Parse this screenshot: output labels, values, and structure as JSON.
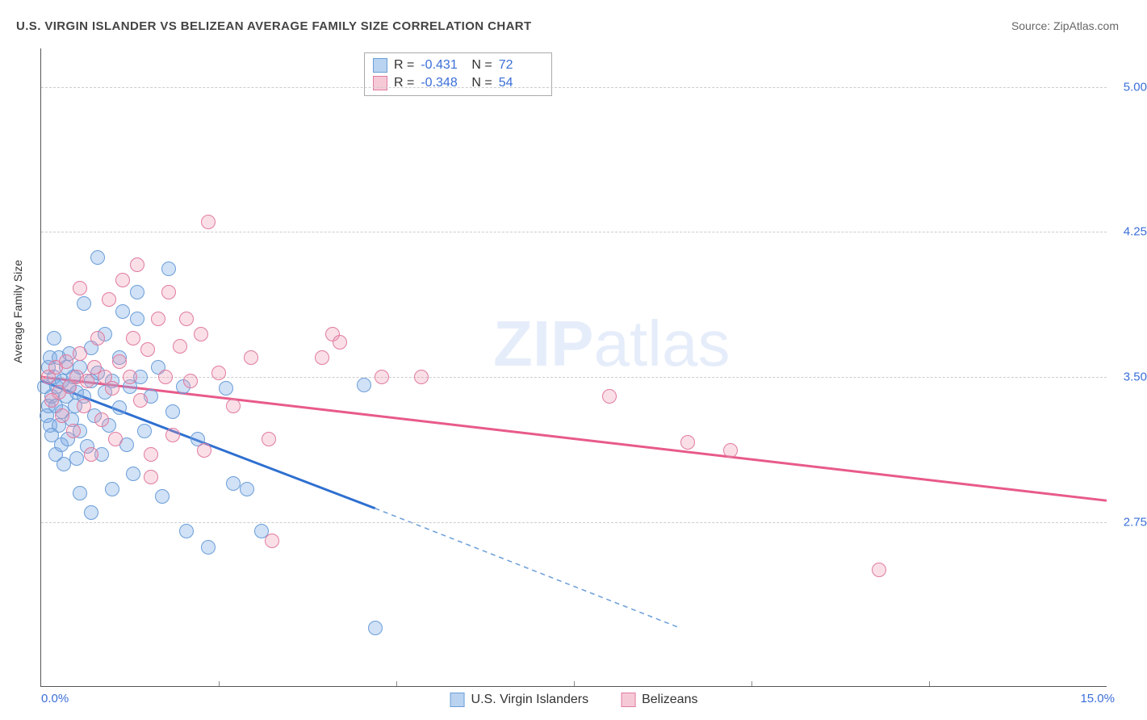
{
  "title": "U.S. VIRGIN ISLANDER VS BELIZEAN AVERAGE FAMILY SIZE CORRELATION CHART",
  "source_prefix": "Source: ",
  "source_name": "ZipAtlas.com",
  "ylabel": "Average Family Size",
  "watermark_bold": "ZIP",
  "watermark_light": "atlas",
  "chart": {
    "type": "scatter-with-trend",
    "background_color": "#ffffff",
    "grid_color": "#cccccc",
    "axis_color": "#555555",
    "tick_color": "#3b6fd8",
    "xlim": [
      0.0,
      15.0
    ],
    "ylim_visible": [
      1.9,
      5.2
    ],
    "yticks": [
      2.75,
      3.5,
      4.25,
      5.0
    ],
    "ytick_labels": [
      "2.75",
      "3.50",
      "4.25",
      "5.00"
    ],
    "xtick_left": "0.0%",
    "xtick_right": "15.0%",
    "xgrid_minor": [
      2.5,
      5.0,
      7.5,
      10.0,
      12.5
    ],
    "point_radius": 9,
    "point_border_width": 1.5,
    "series": [
      {
        "name": "U.S. Virgin Islanders",
        "fill": "rgba(122,170,230,0.35)",
        "stroke": "#6a9ed8",
        "swatch_fill": "#b9d3f0",
        "swatch_border": "#6a9ed8",
        "R": "-0.431",
        "N": "72",
        "trend": {
          "x1": 0.0,
          "y1": 3.48,
          "x2": 4.7,
          "y2": 2.82,
          "color": "#2e6fd0",
          "width": 3
        },
        "trend_ext": {
          "x1": 4.7,
          "y1": 2.82,
          "x2": 9.0,
          "y2": 2.2,
          "color": "#6a9ed8",
          "width": 1.5,
          "dash": "6,5"
        },
        "points": [
          [
            0.05,
            3.45
          ],
          [
            0.08,
            3.3
          ],
          [
            0.1,
            3.55
          ],
          [
            0.1,
            3.35
          ],
          [
            0.12,
            3.25
          ],
          [
            0.12,
            3.6
          ],
          [
            0.15,
            3.4
          ],
          [
            0.15,
            3.2
          ],
          [
            0.18,
            3.5
          ],
          [
            0.18,
            3.7
          ],
          [
            0.2,
            3.35
          ],
          [
            0.2,
            3.1
          ],
          [
            0.22,
            3.45
          ],
          [
            0.25,
            3.25
          ],
          [
            0.25,
            3.6
          ],
          [
            0.28,
            3.15
          ],
          [
            0.3,
            3.48
          ],
          [
            0.3,
            3.32
          ],
          [
            0.32,
            3.05
          ],
          [
            0.35,
            3.55
          ],
          [
            0.35,
            3.4
          ],
          [
            0.38,
            3.18
          ],
          [
            0.4,
            3.45
          ],
          [
            0.4,
            3.62
          ],
          [
            0.43,
            3.28
          ],
          [
            0.45,
            3.5
          ],
          [
            0.48,
            3.35
          ],
          [
            0.5,
            3.08
          ],
          [
            0.5,
            3.42
          ],
          [
            0.55,
            3.55
          ],
          [
            0.55,
            3.22
          ],
          [
            0.6,
            3.4
          ],
          [
            0.6,
            3.88
          ],
          [
            0.65,
            3.14
          ],
          [
            0.7,
            3.48
          ],
          [
            0.7,
            3.65
          ],
          [
            0.75,
            3.3
          ],
          [
            0.8,
            3.52
          ],
          [
            0.8,
            4.12
          ],
          [
            0.85,
            3.1
          ],
          [
            0.9,
            3.42
          ],
          [
            0.9,
            3.72
          ],
          [
            0.95,
            3.25
          ],
          [
            1.0,
            3.48
          ],
          [
            1.0,
            2.92
          ],
          [
            1.1,
            3.6
          ],
          [
            1.1,
            3.34
          ],
          [
            1.15,
            3.84
          ],
          [
            1.2,
            3.15
          ],
          [
            1.25,
            3.45
          ],
          [
            1.3,
            3.0
          ],
          [
            1.35,
            3.94
          ],
          [
            1.35,
            3.8
          ],
          [
            1.4,
            3.5
          ],
          [
            1.45,
            3.22
          ],
          [
            1.55,
            3.4
          ],
          [
            1.65,
            3.55
          ],
          [
            1.7,
            2.88
          ],
          [
            1.8,
            4.06
          ],
          [
            1.85,
            3.32
          ],
          [
            2.0,
            3.45
          ],
          [
            2.05,
            2.7
          ],
          [
            2.2,
            3.18
          ],
          [
            2.35,
            2.62
          ],
          [
            2.6,
            3.44
          ],
          [
            2.7,
            2.95
          ],
          [
            2.9,
            2.92
          ],
          [
            3.1,
            2.7
          ],
          [
            4.55,
            3.46
          ],
          [
            4.7,
            2.2
          ],
          [
            0.55,
            2.9
          ],
          [
            0.7,
            2.8
          ]
        ]
      },
      {
        "name": "Belizeans",
        "fill": "rgba(240,150,175,0.30)",
        "stroke": "#e07ba0",
        "swatch_fill": "#f6c9d6",
        "swatch_border": "#e07ba0",
        "R": "-0.348",
        "N": "54",
        "trend": {
          "x1": 0.0,
          "y1": 3.5,
          "x2": 15.0,
          "y2": 2.86,
          "color": "#e85a8a",
          "width": 3
        },
        "points": [
          [
            0.1,
            3.5
          ],
          [
            0.15,
            3.38
          ],
          [
            0.2,
            3.55
          ],
          [
            0.25,
            3.42
          ],
          [
            0.3,
            3.3
          ],
          [
            0.35,
            3.58
          ],
          [
            0.4,
            3.45
          ],
          [
            0.45,
            3.22
          ],
          [
            0.5,
            3.5
          ],
          [
            0.55,
            3.62
          ],
          [
            0.6,
            3.35
          ],
          [
            0.65,
            3.48
          ],
          [
            0.7,
            3.1
          ],
          [
            0.75,
            3.55
          ],
          [
            0.8,
            3.7
          ],
          [
            0.85,
            3.28
          ],
          [
            0.9,
            3.5
          ],
          [
            0.95,
            3.9
          ],
          [
            1.0,
            3.44
          ],
          [
            1.05,
            3.18
          ],
          [
            1.1,
            3.58
          ],
          [
            1.15,
            4.0
          ],
          [
            1.25,
            3.5
          ],
          [
            1.3,
            3.7
          ],
          [
            1.35,
            4.08
          ],
          [
            1.4,
            3.38
          ],
          [
            1.5,
            3.64
          ],
          [
            1.55,
            3.1
          ],
          [
            1.65,
            3.8
          ],
          [
            1.75,
            3.5
          ],
          [
            1.85,
            3.2
          ],
          [
            1.95,
            3.66
          ],
          [
            2.05,
            3.8
          ],
          [
            2.1,
            3.48
          ],
          [
            2.25,
            3.72
          ],
          [
            2.3,
            3.12
          ],
          [
            2.35,
            4.3
          ],
          [
            2.5,
            3.52
          ],
          [
            2.7,
            3.35
          ],
          [
            2.95,
            3.6
          ],
          [
            3.2,
            3.18
          ],
          [
            3.25,
            2.65
          ],
          [
            3.95,
            3.6
          ],
          [
            4.1,
            3.72
          ],
          [
            4.2,
            3.68
          ],
          [
            4.8,
            3.5
          ],
          [
            5.35,
            3.5
          ],
          [
            8.0,
            3.4
          ],
          [
            9.1,
            3.16
          ],
          [
            9.7,
            3.12
          ],
          [
            11.8,
            2.5
          ],
          [
            1.55,
            2.98
          ],
          [
            0.55,
            3.96
          ],
          [
            1.8,
            3.94
          ]
        ]
      }
    ]
  }
}
